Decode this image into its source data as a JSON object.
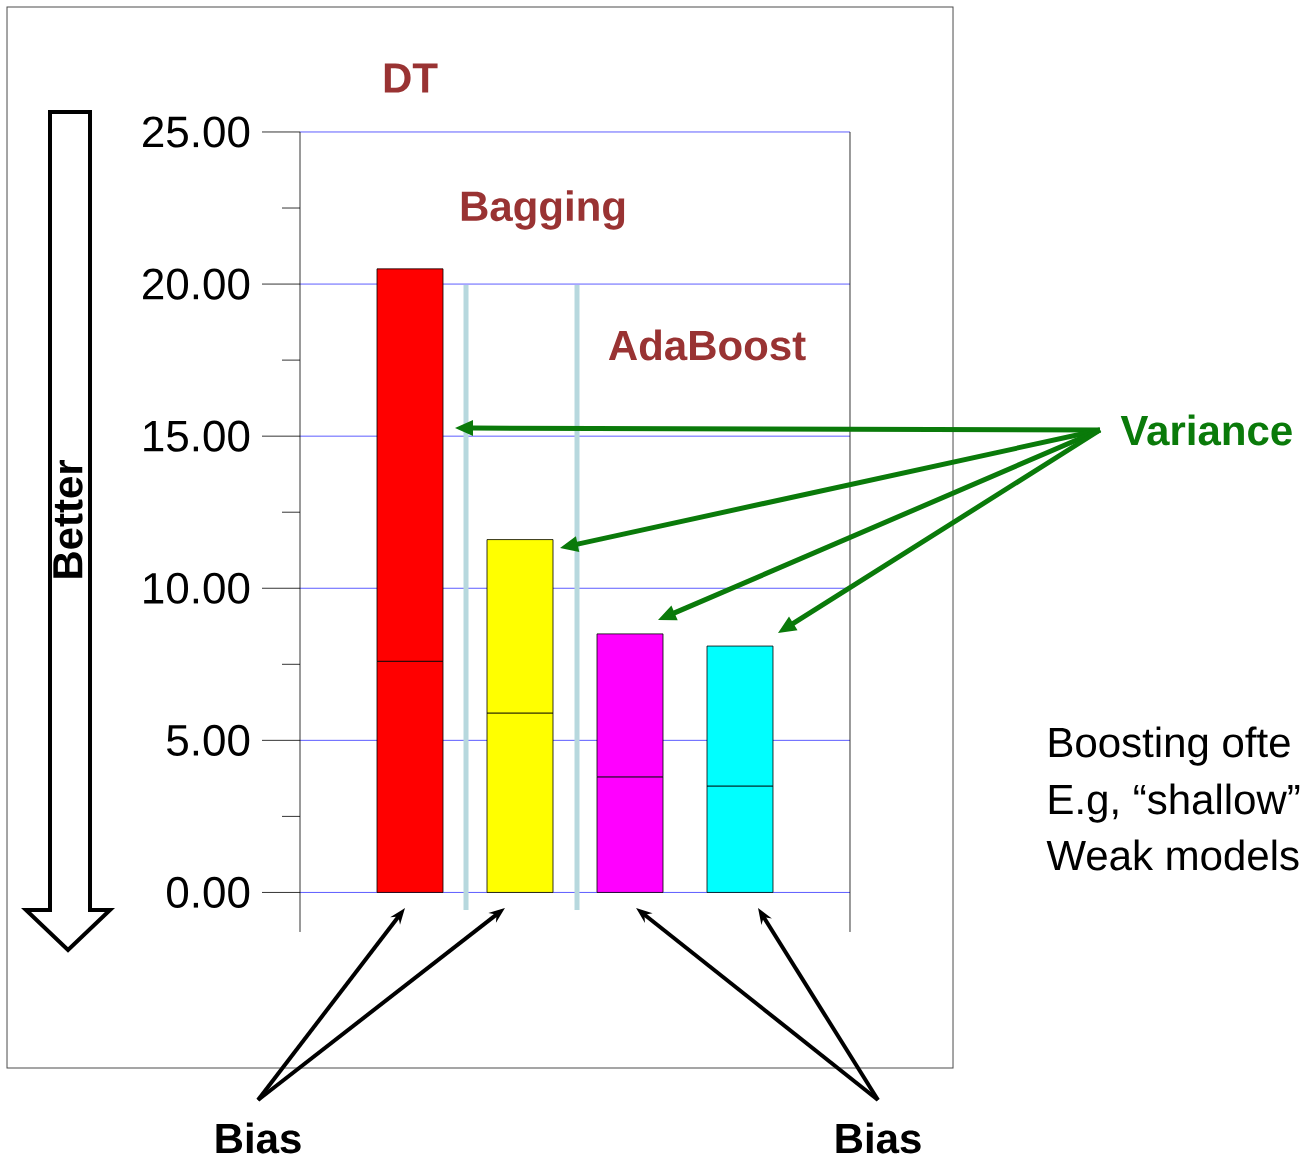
{
  "chart_data": {
    "type": "bar",
    "stacked": true,
    "categories": [
      null,
      null,
      null,
      null
    ],
    "series": [
      {
        "name": "Bias",
        "colors": [
          "#ff0000",
          "#ffff00",
          "#ff00ff",
          "#00ffff"
        ],
        "values": [
          7.6,
          5.9,
          3.8,
          3.5
        ]
      },
      {
        "name": "Variance",
        "colors": [
          "#ff0000",
          "#ffff00",
          "#ff00ff",
          "#00ffff"
        ],
        "values": [
          12.9,
          5.7,
          4.7,
          4.6
        ]
      }
    ],
    "ylim": [
      -1.3,
      25
    ],
    "yticks": [
      {
        "value": 0,
        "label": "0.00"
      },
      {
        "value": 5,
        "label": "5.00"
      },
      {
        "value": 10,
        "label": "10.00"
      },
      {
        "value": 15,
        "label": "15.00"
      },
      {
        "value": 20,
        "label": "20.00"
      },
      {
        "value": 25,
        "label": "25.00"
      }
    ],
    "grid": "y",
    "annotations": [
      "DT",
      "Bagging",
      "AdaBoost",
      "Better",
      "Boosting ofte",
      "E.g, “shallow”",
      "Weak models"
    ]
  }
}
